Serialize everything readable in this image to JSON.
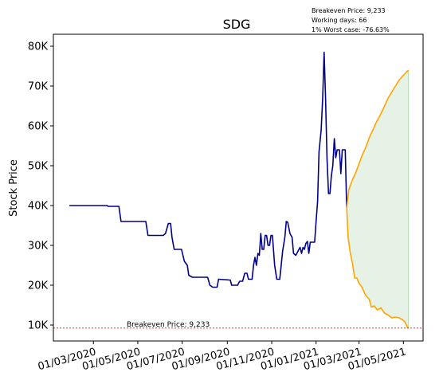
{
  "chart_data": {
    "type": "line",
    "title": "SDG",
    "xlabel": "",
    "ylabel": "Stock Price",
    "ylim": [
      6000,
      83000
    ],
    "xlim": [
      "2020-01-06",
      "2021-05-28"
    ],
    "y_ticks": [
      10000,
      20000,
      30000,
      40000,
      50000,
      60000,
      70000,
      80000
    ],
    "y_tick_labels": [
      "10K",
      "20K",
      "30K",
      "40K",
      "50K",
      "60K",
      "70K",
      "80K"
    ],
    "x_ticks": [
      "2020-03-01",
      "2020-05-01",
      "2020-07-01",
      "2020-09-01",
      "2020-11-01",
      "2021-01-01",
      "2021-03-01",
      "2021-05-01"
    ],
    "x_tick_labels": [
      "01/03/2020",
      "01/05/2020",
      "01/07/2020",
      "01/09/2020",
      "01/11/2020",
      "01/01/2021",
      "01/03/2021",
      "01/05/2021"
    ],
    "grid": false,
    "annotation_lines": [
      "Breakeven Price: 9,233",
      "Working days: 66",
      "1% Worst case: -76.63%"
    ],
    "breakeven": {
      "value": 9233,
      "label": "Breakeven Price: 9,233",
      "color": "#ff0000"
    },
    "colors": {
      "history": "#00008b",
      "projection": "#ffa500",
      "band": "#008000"
    },
    "series": [
      {
        "role": "history",
        "points": [
          [
            "2020-01-28",
            40000
          ],
          [
            "2020-02-10",
            40000
          ],
          [
            "2020-03-01",
            40000
          ],
          [
            "2020-03-20",
            40000
          ],
          [
            "2020-03-21",
            39800
          ],
          [
            "2020-04-05",
            39800
          ],
          [
            "2020-04-08",
            36000
          ],
          [
            "2020-05-12",
            36000
          ],
          [
            "2020-05-15",
            32500
          ],
          [
            "2020-06-05",
            32500
          ],
          [
            "2020-06-08",
            33000
          ],
          [
            "2020-06-12",
            35500
          ],
          [
            "2020-06-15",
            35500
          ],
          [
            "2020-06-17",
            32000
          ],
          [
            "2020-06-20",
            29000
          ],
          [
            "2020-06-30",
            29000
          ],
          [
            "2020-07-04",
            26000
          ],
          [
            "2020-07-08",
            25000
          ],
          [
            "2020-07-10",
            22500
          ],
          [
            "2020-07-15",
            22000
          ],
          [
            "2020-08-05",
            22000
          ],
          [
            "2020-08-08",
            20000
          ],
          [
            "2020-08-12",
            19500
          ],
          [
            "2020-08-18",
            19500
          ],
          [
            "2020-08-20",
            21500
          ],
          [
            "2020-09-05",
            21300
          ],
          [
            "2020-09-07",
            20000
          ],
          [
            "2020-09-15",
            20000
          ],
          [
            "2020-09-18",
            21000
          ],
          [
            "2020-09-22",
            21000
          ],
          [
            "2020-09-25",
            23000
          ],
          [
            "2020-09-28",
            23000
          ],
          [
            "2020-09-30",
            21500
          ],
          [
            "2020-10-05",
            21500
          ],
          [
            "2020-10-07",
            25000
          ],
          [
            "2020-10-09",
            27000
          ],
          [
            "2020-10-11",
            25000
          ],
          [
            "2020-10-13",
            28000
          ],
          [
            "2020-10-15",
            27500
          ],
          [
            "2020-10-17",
            33000
          ],
          [
            "2020-10-19",
            29000
          ],
          [
            "2020-10-21",
            29000
          ],
          [
            "2020-10-23",
            32500
          ],
          [
            "2020-10-25",
            32500
          ],
          [
            "2020-10-27",
            30000
          ],
          [
            "2020-10-29",
            30000
          ],
          [
            "2020-10-31",
            32500
          ],
          [
            "2020-11-02",
            32500
          ],
          [
            "2020-11-05",
            25000
          ],
          [
            "2020-11-08",
            21500
          ],
          [
            "2020-11-12",
            21500
          ],
          [
            "2020-11-14",
            25000
          ],
          [
            "2020-11-16",
            28500
          ],
          [
            "2020-11-19",
            32000
          ],
          [
            "2020-11-21",
            36000
          ],
          [
            "2020-11-23",
            35800
          ],
          [
            "2020-11-26",
            33000
          ],
          [
            "2020-11-29",
            32000
          ],
          [
            "2020-12-01",
            28000
          ],
          [
            "2020-12-04",
            27500
          ],
          [
            "2020-12-07",
            28500
          ],
          [
            "2020-12-10",
            29500
          ],
          [
            "2020-12-12",
            28000
          ],
          [
            "2020-12-14",
            29500
          ],
          [
            "2020-12-16",
            29000
          ],
          [
            "2020-12-18",
            30500
          ],
          [
            "2020-12-20",
            31000
          ],
          [
            "2020-12-22",
            28000
          ],
          [
            "2020-12-24",
            30800
          ],
          [
            "2020-12-30",
            30800
          ],
          [
            "2021-01-01",
            36000
          ],
          [
            "2021-01-03",
            41000
          ],
          [
            "2021-01-05",
            53500
          ],
          [
            "2021-01-08",
            59000
          ],
          [
            "2021-01-10",
            67000
          ],
          [
            "2021-01-12",
            78500
          ],
          [
            "2021-01-14",
            67000
          ],
          [
            "2021-01-16",
            52000
          ],
          [
            "2021-01-18",
            43000
          ],
          [
            "2021-01-20",
            43000
          ],
          [
            "2021-01-22",
            47500
          ],
          [
            "2021-01-24",
            50000
          ],
          [
            "2021-01-26",
            56800
          ],
          [
            "2021-01-28",
            52000
          ],
          [
            "2021-01-30",
            54000
          ],
          [
            "2021-02-02",
            54000
          ],
          [
            "2021-02-04",
            48000
          ],
          [
            "2021-02-06",
            54000
          ],
          [
            "2021-02-10",
            54000
          ],
          [
            "2021-02-12",
            39500
          ]
        ]
      },
      {
        "role": "projection-upper",
        "points": [
          [
            "2021-02-12",
            39500
          ],
          [
            "2021-02-15",
            44000
          ],
          [
            "2021-02-20",
            46500
          ],
          [
            "2021-02-25",
            48500
          ],
          [
            "2021-03-01",
            50500
          ],
          [
            "2021-03-05",
            52500
          ],
          [
            "2021-03-10",
            54500
          ],
          [
            "2021-03-15",
            57000
          ],
          [
            "2021-03-20",
            59000
          ],
          [
            "2021-03-25",
            61000
          ],
          [
            "2021-03-31",
            63000
          ],
          [
            "2021-04-05",
            65000
          ],
          [
            "2021-04-10",
            67000
          ],
          [
            "2021-04-15",
            68500
          ],
          [
            "2021-04-20",
            70000
          ],
          [
            "2021-04-25",
            71500
          ],
          [
            "2021-04-30",
            72500
          ],
          [
            "2021-05-05",
            73500
          ],
          [
            "2021-05-08",
            74000
          ]
        ]
      },
      {
        "role": "projection-lower",
        "points": [
          [
            "2021-02-12",
            39500
          ],
          [
            "2021-02-14",
            32000
          ],
          [
            "2021-02-17",
            28000
          ],
          [
            "2021-02-20",
            25500
          ],
          [
            "2021-02-23",
            21800
          ],
          [
            "2021-02-26",
            21800
          ],
          [
            "2021-03-01",
            20500
          ],
          [
            "2021-03-05",
            19500
          ],
          [
            "2021-03-10",
            17500
          ],
          [
            "2021-03-15",
            16500
          ],
          [
            "2021-03-18",
            14500
          ],
          [
            "2021-03-22",
            14800
          ],
          [
            "2021-03-26",
            13800
          ],
          [
            "2021-03-31",
            14300
          ],
          [
            "2021-04-05",
            13000
          ],
          [
            "2021-04-10",
            12500
          ],
          [
            "2021-04-15",
            11800
          ],
          [
            "2021-04-20",
            12000
          ],
          [
            "2021-04-25",
            11800
          ],
          [
            "2021-04-30",
            11300
          ],
          [
            "2021-05-03",
            10800
          ],
          [
            "2021-05-06",
            9600
          ],
          [
            "2021-05-08",
            9300
          ]
        ]
      }
    ]
  }
}
